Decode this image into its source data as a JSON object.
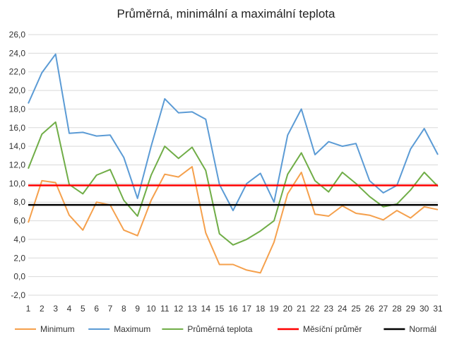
{
  "chart_data": {
    "type": "line",
    "title": "Průměrná, minimální a maximální teplota",
    "xlabel": "",
    "ylabel": "",
    "x": [
      1,
      2,
      3,
      4,
      5,
      6,
      7,
      8,
      9,
      10,
      11,
      12,
      13,
      14,
      15,
      16,
      17,
      18,
      19,
      20,
      21,
      22,
      23,
      24,
      25,
      26,
      27,
      28,
      29,
      30,
      31
    ],
    "ylim": [
      -2,
      26
    ],
    "y_ticks": [
      "-2,0",
      "0,0",
      "2,0",
      "4,0",
      "6,0",
      "8,0",
      "10,0",
      "12,0",
      "14,0",
      "16,0",
      "18,0",
      "20,0",
      "22,0",
      "24,0",
      "26,0"
    ],
    "grid": true,
    "legend_position": "bottom",
    "series": [
      {
        "name": "Minimum",
        "color": "#F5A04C",
        "values": [
          5.8,
          10.3,
          10.1,
          6.6,
          5.0,
          8.0,
          7.7,
          5.0,
          4.4,
          8.2,
          11.0,
          10.7,
          11.8,
          4.7,
          1.3,
          1.3,
          0.7,
          0.4,
          3.7,
          8.9,
          11.2,
          6.7,
          6.5,
          7.6,
          6.8,
          6.6,
          6.1,
          7.1,
          6.3,
          7.5,
          7.2
        ]
      },
      {
        "name": "Maximum",
        "color": "#5B9BD5",
        "values": [
          18.6,
          21.9,
          23.9,
          15.4,
          15.5,
          15.1,
          15.2,
          12.8,
          8.4,
          14.0,
          19.1,
          17.6,
          17.7,
          16.9,
          9.9,
          7.1,
          10.0,
          11.1,
          8.0,
          15.2,
          18.0,
          13.1,
          14.5,
          14.0,
          14.3,
          10.3,
          9.0,
          9.8,
          13.7,
          15.9,
          13.1
        ]
      },
      {
        "name": "Průměrná teplota",
        "color": "#70AD47",
        "values": [
          11.6,
          15.3,
          16.6,
          9.9,
          8.9,
          10.9,
          11.5,
          8.2,
          6.5,
          10.9,
          14.0,
          12.7,
          13.9,
          11.4,
          4.6,
          3.4,
          4.0,
          4.9,
          6.0,
          11.0,
          13.3,
          10.3,
          9.1,
          11.2,
          10.0,
          8.6,
          7.5,
          7.8,
          9.3,
          11.2,
          9.7
        ]
      },
      {
        "name": "Měsíční průměr",
        "color": "#FF0000",
        "constant": 9.8
      },
      {
        "name": "Normál",
        "color": "#000000",
        "constant": 7.7
      }
    ]
  }
}
